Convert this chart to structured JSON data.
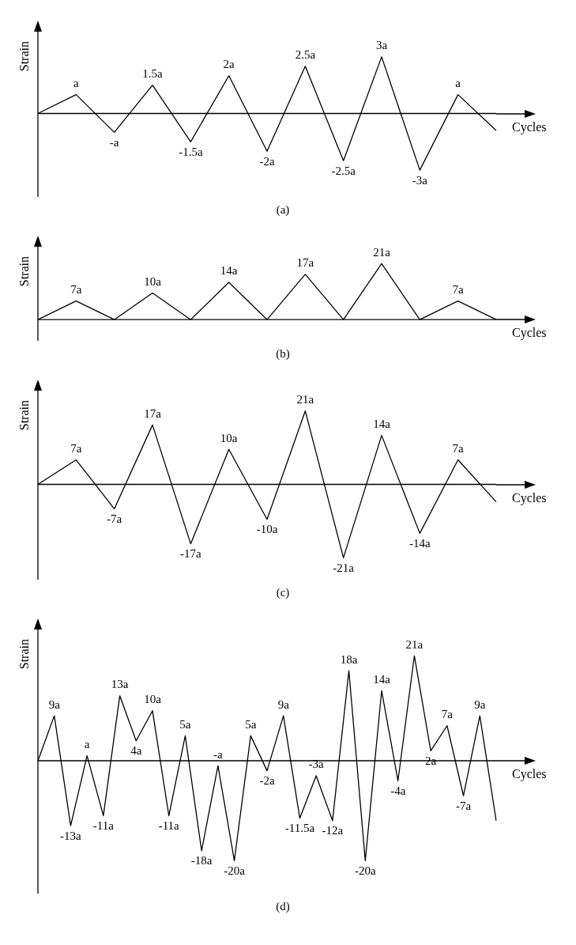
{
  "chart_data": [
    {
      "type": "line",
      "xlabel": "Cycles",
      "ylabel": "Strain",
      "annotations": [
        "(a)"
      ],
      "categories": [
        null,
        null,
        null,
        null,
        null,
        null,
        null,
        null,
        null,
        null,
        null,
        null,
        null
      ],
      "series": [
        {
          "color": "#000000",
          "values": [
            0,
            1,
            -1,
            1.5,
            -1.5,
            2,
            -2,
            2.5,
            -2.5,
            3,
            -3,
            1,
            -0.9
          ],
          "value_labels": [
            null,
            "a",
            "-a",
            "1.5a",
            "-1.5a",
            "2a",
            "-2a",
            "2.5a",
            "-2.5a",
            "3a",
            "-3a",
            "a",
            null
          ]
        }
      ]
    },
    {
      "type": "line",
      "xlabel": "Cycles",
      "ylabel": "Strain",
      "annotations": [
        "(b)"
      ],
      "categories": [
        null,
        null,
        null,
        null,
        null,
        null,
        null,
        null,
        null,
        null,
        null,
        null,
        null
      ],
      "series": [
        {
          "color": "#000000",
          "values": [
            0,
            7,
            0,
            10,
            0,
            14,
            0,
            17,
            0,
            21,
            0,
            7,
            0
          ],
          "value_labels": [
            null,
            "7a",
            null,
            "10a",
            null,
            "14a",
            null,
            "17a",
            null,
            "21a",
            null,
            "7a",
            null
          ]
        }
      ]
    },
    {
      "type": "line",
      "xlabel": "Cycles",
      "ylabel": "Strain",
      "annotations": [
        "(c)"
      ],
      "categories": [
        null,
        null,
        null,
        null,
        null,
        null,
        null,
        null,
        null,
        null,
        null,
        null,
        null
      ],
      "series": [
        {
          "color": "#000000",
          "values": [
            0,
            7,
            -7,
            17,
            -17,
            10,
            -10,
            21,
            -21,
            14,
            -14,
            7,
            -5
          ],
          "value_labels": [
            null,
            "7a",
            "-7a",
            "17a",
            "-17a",
            "10a",
            "-10a",
            "21a",
            "-21a",
            "14a",
            "-14a",
            "7a",
            null
          ]
        }
      ]
    },
    {
      "type": "line",
      "xlabel": "Cycles",
      "ylabel": "Strain",
      "annotations": [
        "(d)"
      ],
      "categories": [
        null,
        null,
        null,
        null,
        null,
        null,
        null,
        null,
        null,
        null,
        null,
        null,
        null,
        null,
        null,
        null,
        null,
        null,
        null,
        null,
        null,
        null,
        null,
        null,
        null,
        null,
        null,
        null,
        null
      ],
      "series": [
        {
          "color": "#000000",
          "values": [
            0,
            9,
            -13,
            1,
            -11,
            13,
            4,
            10,
            -11,
            5,
            -18,
            -1,
            -20,
            5,
            -2,
            9,
            -11.5,
            -3,
            -12,
            18,
            -20,
            14,
            -4,
            21,
            2,
            7,
            -7,
            9,
            -12
          ],
          "value_labels": [
            null,
            "9a",
            "-13a",
            "a",
            "-11a",
            "13a",
            "4a",
            "10a",
            "-11a",
            "5a",
            "-18a",
            "-a",
            "-20a",
            "5a",
            "-2a",
            "9a",
            "-11.5a",
            "-3a",
            "-12a",
            "18a",
            "-20a",
            "14a",
            "-4a",
            "21a",
            "2a",
            "7a",
            "-7a",
            "9a",
            null
          ]
        }
      ]
    }
  ]
}
